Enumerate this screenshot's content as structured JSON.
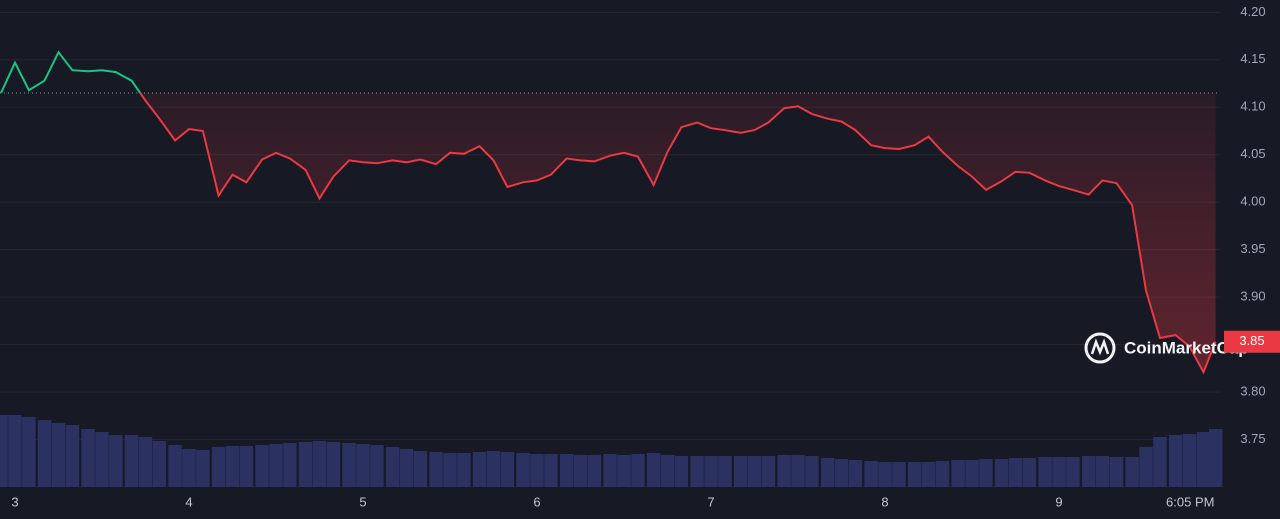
{
  "chart_data": {
    "type": "line",
    "x": [
      2.92,
      3.0,
      3.08,
      3.17,
      3.25,
      3.33,
      3.42,
      3.5,
      3.58,
      3.67,
      3.75,
      3.83,
      3.92,
      4.0,
      4.08,
      4.17,
      4.25,
      4.33,
      4.42,
      4.5,
      4.58,
      4.67,
      4.75,
      4.83,
      4.92,
      5.0,
      5.08,
      5.17,
      5.25,
      5.33,
      5.42,
      5.5,
      5.58,
      5.67,
      5.75,
      5.83,
      5.92,
      6.0,
      6.08,
      6.17,
      6.25,
      6.33,
      6.42,
      6.5,
      6.58,
      6.67,
      6.75,
      6.83,
      6.92,
      7.0,
      7.08,
      7.17,
      7.25,
      7.33,
      7.42,
      7.5,
      7.58,
      7.67,
      7.75,
      7.83,
      7.92,
      8.0,
      8.08,
      8.17,
      8.25,
      8.33,
      8.42,
      8.5,
      8.58,
      8.67,
      8.75,
      8.83,
      8.92,
      9.0,
      9.08,
      9.17,
      9.25,
      9.33,
      9.42,
      9.5,
      9.58,
      9.67,
      9.75,
      9.83,
      9.9
    ],
    "values": [
      4.115,
      4.147,
      4.118,
      4.128,
      4.158,
      4.139,
      4.138,
      4.139,
      4.137,
      4.128,
      4.107,
      4.088,
      4.065,
      4.077,
      4.075,
      4.007,
      4.029,
      4.021,
      4.045,
      4.052,
      4.046,
      4.034,
      4.004,
      4.027,
      4.044,
      4.042,
      4.041,
      4.044,
      4.042,
      4.045,
      4.04,
      4.052,
      4.051,
      4.059,
      4.044,
      4.016,
      4.021,
      4.023,
      4.029,
      4.046,
      4.044,
      4.043,
      4.049,
      4.052,
      4.048,
      4.018,
      4.053,
      4.079,
      4.084,
      4.078,
      4.076,
      4.073,
      4.076,
      4.084,
      4.099,
      4.101,
      4.093,
      4.088,
      4.085,
      4.076,
      4.06,
      4.057,
      4.056,
      4.06,
      4.069,
      4.053,
      4.038,
      4.027,
      4.013,
      4.022,
      4.032,
      4.031,
      4.023,
      4.017,
      4.013,
      4.008,
      4.023,
      4.02,
      3.997,
      3.907,
      3.857,
      3.86,
      3.848,
      3.821,
      3.853
    ],
    "volume": [
      72,
      72,
      70,
      67,
      64,
      62,
      58,
      55,
      52,
      52,
      50,
      46,
      42,
      38,
      37,
      40,
      41,
      41,
      42,
      43,
      44,
      45,
      46,
      45,
      44,
      43,
      42,
      40,
      38,
      36,
      35,
      34,
      34,
      35,
      36,
      35,
      34,
      33,
      33,
      33,
      32,
      32,
      33,
      32,
      33,
      34,
      32,
      31,
      31,
      31,
      31,
      31,
      31,
      31,
      32,
      32,
      31,
      29,
      28,
      27,
      26,
      25,
      25,
      25,
      25,
      26,
      27,
      27,
      28,
      28,
      29,
      29,
      30,
      30,
      30,
      31,
      31,
      30,
      30,
      40,
      50,
      52,
      53,
      55,
      58
    ],
    "xlim": [
      2.914,
      9.925
    ],
    "xticks": [
      3,
      4,
      5,
      6,
      7,
      8,
      9,
      {
        "value": 9.754,
        "label": "6:05 PM"
      }
    ],
    "ylim": [
      3.7,
      4.213
    ],
    "yticks": [
      {
        "value": 4.2,
        "label": "4.20"
      },
      4.15,
      {
        "value": 4.1,
        "label": "4.10"
      },
      4.05,
      {
        "value": 4.0,
        "label": "4.00"
      },
      3.95,
      {
        "value": 3.9,
        "label": "3.90"
      },
      3.85,
      {
        "value": 3.8,
        "label": "3.80"
      },
      3.75
    ],
    "grid": true,
    "reference_line": 4.115,
    "up_color": "#16c784",
    "down_color": "#ea3943",
    "volume_color": "#2b3262",
    "last_price_label": "3.85",
    "watermark": "CoinMarketCap"
  }
}
